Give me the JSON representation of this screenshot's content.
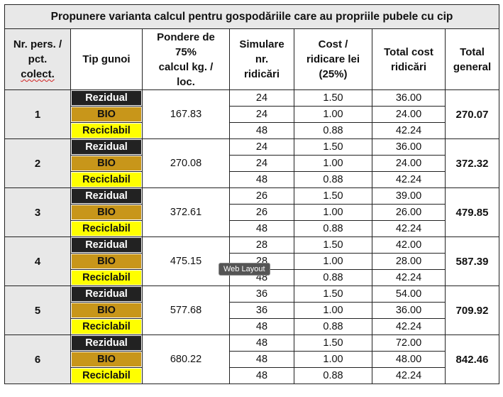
{
  "title": "Propunere varianta calcul pentru gospodăriile care au propriile pubele cu cip",
  "headers": {
    "nr_line1": "Nr. pers. /",
    "nr_line2": "pct.",
    "nr_line3": "colect.",
    "tip": "Tip gunoi",
    "pondere_line1": "Pondere de",
    "pondere_line2": "75%",
    "pondere_line3": "calcul kg. /",
    "pondere_line4": "loc.",
    "sim_line1": "Simulare",
    "sim_line2": "nr.",
    "sim_line3": "ridicări",
    "cost_line1": "Cost /",
    "cost_line2": "ridicare lei",
    "cost_line3": "(25%)",
    "total_cost_line1": "Total cost",
    "total_cost_line2": "ridicări",
    "total_gen_line1": "Total",
    "total_gen_line2": "general"
  },
  "types": {
    "rez": "Rezidual",
    "bio": "BIO",
    "rec": "Reciclabil"
  },
  "colors": {
    "rezidual": "#222222",
    "bio": "#c8961a",
    "reciclabil": "#ffff00",
    "header_bg": "#e8e8e8"
  },
  "groups": [
    {
      "nr": "1",
      "pondere": "167.83",
      "total": "270.07",
      "rows": [
        {
          "sim": "24",
          "cost": "1.50",
          "tc": "36.00"
        },
        {
          "sim": "24",
          "cost": "1.00",
          "tc": "24.00"
        },
        {
          "sim": "48",
          "cost": "0.88",
          "tc": "42.24"
        }
      ]
    },
    {
      "nr": "2",
      "pondere": "270.08",
      "total": "372.32",
      "rows": [
        {
          "sim": "24",
          "cost": "1.50",
          "tc": "36.00"
        },
        {
          "sim": "24",
          "cost": "1.00",
          "tc": "24.00"
        },
        {
          "sim": "48",
          "cost": "0.88",
          "tc": "42.24"
        }
      ]
    },
    {
      "nr": "3",
      "pondere": "372.61",
      "total": "479.85",
      "rows": [
        {
          "sim": "26",
          "cost": "1.50",
          "tc": "39.00"
        },
        {
          "sim": "26",
          "cost": "1.00",
          "tc": "26.00"
        },
        {
          "sim": "48",
          "cost": "0.88",
          "tc": "42.24"
        }
      ]
    },
    {
      "nr": "4",
      "pondere": "475.15",
      "total": "587.39",
      "rows": [
        {
          "sim": "28",
          "cost": "1.50",
          "tc": "42.00"
        },
        {
          "sim": "28",
          "cost": "1.00",
          "tc": "28.00"
        },
        {
          "sim": "48",
          "cost": "0.88",
          "tc": "42.24"
        }
      ]
    },
    {
      "nr": "5",
      "pondere": "577.68",
      "total": "709.92",
      "rows": [
        {
          "sim": "36",
          "cost": "1.50",
          "tc": "54.00"
        },
        {
          "sim": "36",
          "cost": "1.00",
          "tc": "36.00"
        },
        {
          "sim": "48",
          "cost": "0.88",
          "tc": "42.24"
        }
      ]
    },
    {
      "nr": "6",
      "pondere": "680.22",
      "total": "842.46",
      "rows": [
        {
          "sim": "48",
          "cost": "1.50",
          "tc": "72.00"
        },
        {
          "sim": "48",
          "cost": "1.00",
          "tc": "48.00"
        },
        {
          "sim": "48",
          "cost": "0.88",
          "tc": "42.24"
        }
      ]
    }
  ],
  "tooltip": "Web Layout"
}
